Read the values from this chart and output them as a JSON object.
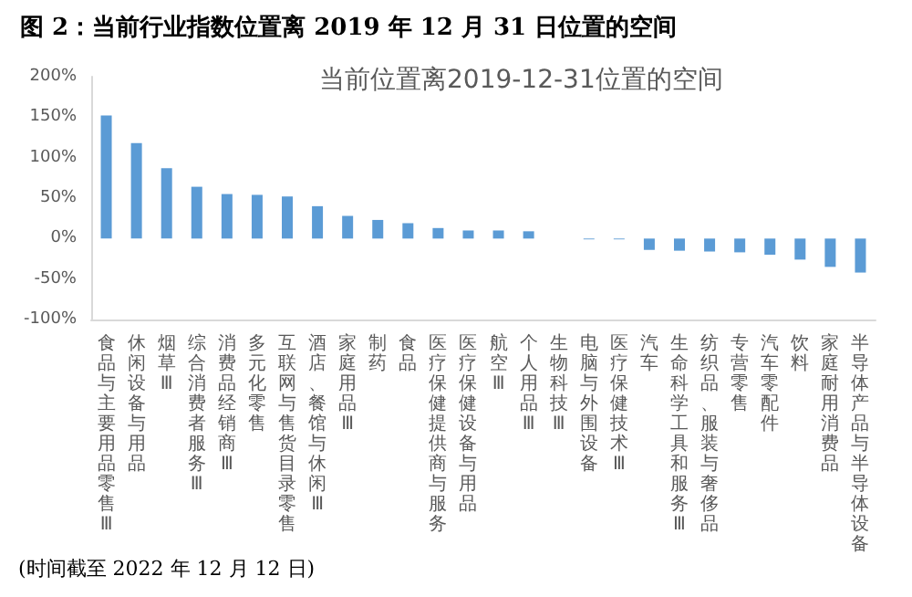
{
  "chart_data": {
    "type": "bar",
    "title": "图 2：当前行业指数位置离 2019 年 12 月 31 日位置的空间",
    "subtitle": "当前位置离2019-12-31位置的空间",
    "categories": [
      "食品与主要用品零售Ⅲ",
      "休闲设备与用品",
      "烟草Ⅲ",
      "综合消费者服务Ⅲ",
      "消费品经销商Ⅲ",
      "多元化零售",
      "互联网与售货目录零售",
      "酒店、餐馆与休闲Ⅲ",
      "家庭用品Ⅲ",
      "制药",
      "食品",
      "医疗保健提供商与服务",
      "医疗保健设备与用品",
      "航空Ⅲ",
      "个人用品Ⅲ",
      "生物科技Ⅲ",
      "电脑与外围设备",
      "医疗保健技术Ⅲ",
      "汽车",
      "生命科学工具和服务Ⅲ",
      "纺织品、服装与奢侈品",
      "专营零售",
      "汽车零配件",
      "饮料",
      "家庭耐用消费品",
      "半导体产品与半导体设备"
    ],
    "values": [
      152,
      118,
      87,
      64,
      55,
      54,
      52,
      40,
      28,
      23,
      19,
      13,
      10,
      10,
      9,
      0,
      -1,
      -1,
      -14,
      -15,
      -16,
      -17,
      -20,
      -26,
      -35,
      -42
    ],
    "color": "#5b9bd5",
    "ylim": [
      -100,
      200
    ],
    "yticks": [
      {
        "value": -100,
        "label": "-100%"
      },
      {
        "value": -50,
        "label": "-50%"
      },
      {
        "value": 0,
        "label": "0%"
      },
      {
        "value": 50,
        "label": "50%"
      },
      {
        "value": 100,
        "label": "100%"
      },
      {
        "value": 150,
        "label": "150%"
      },
      {
        "value": 200,
        "label": "200%"
      }
    ],
    "grid": false,
    "annotations": [
      "(时间截至 2022 年 12 月 12 日)"
    ]
  }
}
